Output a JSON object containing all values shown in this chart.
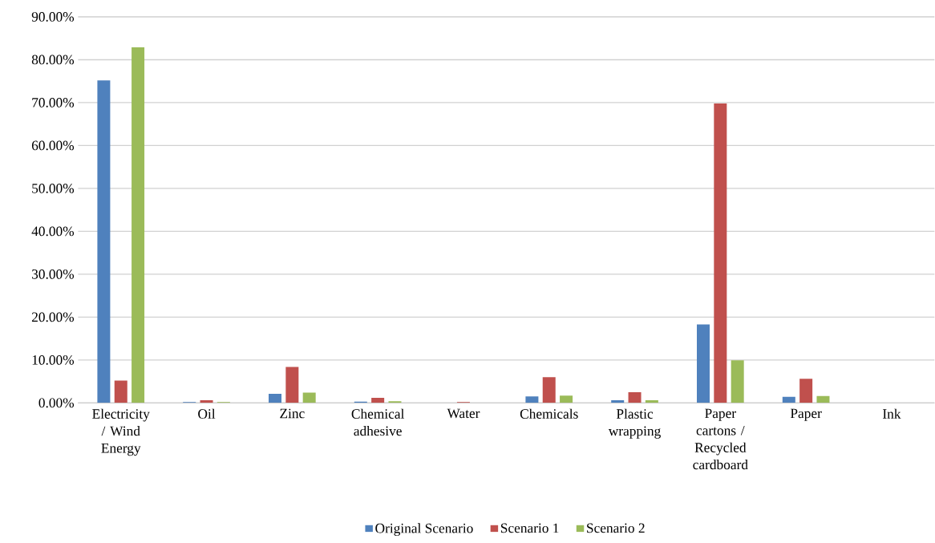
{
  "chart_data": {
    "type": "bar",
    "categories": [
      "Electricity / Wind Energy",
      "Oil",
      "Zinc",
      "Chemical adhesive",
      "Water",
      "Chemicals",
      "Plastic wrapping",
      "Paper cartons / Recycled cardboard",
      "Paper",
      "Ink"
    ],
    "series": [
      {
        "name": "Original Scenario",
        "color": "#4f81bd",
        "values": [
          75.2,
          0.2,
          2.1,
          0.3,
          0,
          1.5,
          0.6,
          18.3,
          1.4,
          0
        ]
      },
      {
        "name": "Scenario 1",
        "color": "#c0504d",
        "values": [
          5.2,
          0.6,
          8.4,
          1.2,
          0.2,
          6.0,
          2.5,
          69.8,
          5.6,
          0
        ]
      },
      {
        "name": "Scenario 2",
        "color": "#9bbb59",
        "values": [
          82.9,
          0.2,
          2.4,
          0.4,
          0,
          1.7,
          0.6,
          9.9,
          1.6,
          0
        ]
      }
    ],
    "ylim": [
      0,
      90
    ],
    "yticks": [
      {
        "value": 0,
        "label": "0.00%"
      },
      {
        "value": 10,
        "label": "10.00%"
      },
      {
        "value": 20,
        "label": "20.00%"
      },
      {
        "value": 30,
        "label": "30.00%"
      },
      {
        "value": 40,
        "label": "40.00%"
      },
      {
        "value": 50,
        "label": "50.00%"
      },
      {
        "value": 60,
        "label": "60.00%"
      },
      {
        "value": 70,
        "label": "70.00%"
      },
      {
        "value": 80,
        "label": "80.00%"
      },
      {
        "value": 90,
        "label": "90.00%"
      }
    ],
    "grid": "y",
    "legend": "bottom"
  }
}
